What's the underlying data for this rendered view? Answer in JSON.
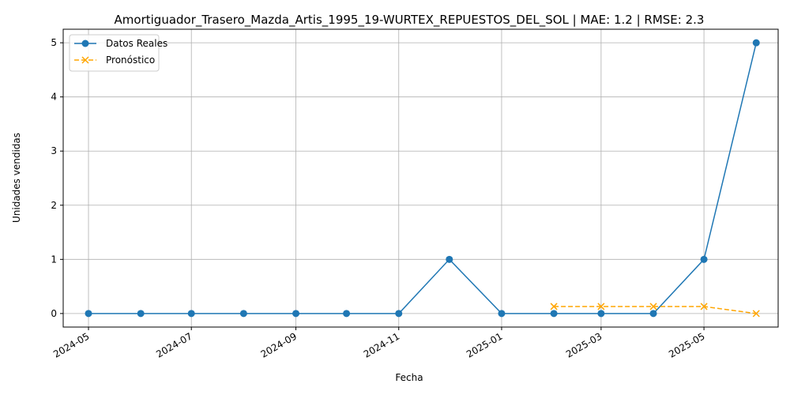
{
  "chart_data": {
    "type": "line",
    "title": "Amortiguador_Trasero_Mazda_Artis_1995_19-WURTEX_REPUESTOS_DEL_SOL | MAE: 1.2 | RMSE: 2.3",
    "xlabel": "Fecha",
    "ylabel": "Unidades vendidas",
    "ylim": [
      -0.25,
      5.25
    ],
    "xlim": [
      "2024-04-16",
      "2025-06-14"
    ],
    "grid": true,
    "legend_position": "upper-left",
    "x_ticks": [
      "2024-05",
      "2024-07",
      "2024-09",
      "2024-11",
      "2025-01",
      "2025-03",
      "2025-05"
    ],
    "y_ticks": [
      0,
      1,
      2,
      3,
      4,
      5
    ],
    "series": [
      {
        "name": "Datos Reales",
        "color": "#1f77b4",
        "style": "solid",
        "marker": "circle",
        "x": [
          "2024-05-01",
          "2024-06-01",
          "2024-07-01",
          "2024-08-01",
          "2024-09-01",
          "2024-10-01",
          "2024-11-01",
          "2024-12-01",
          "2025-01-01",
          "2025-02-01",
          "2025-03-01",
          "2025-04-01",
          "2025-05-01",
          "2025-06-01"
        ],
        "values": [
          0,
          0,
          0,
          0,
          0,
          0,
          0,
          1,
          0,
          0,
          0,
          0,
          1,
          5
        ]
      },
      {
        "name": "Pronóstico",
        "color": "#ffa500",
        "style": "dashed",
        "marker": "x",
        "x": [
          "2025-02-01",
          "2025-03-01",
          "2025-04-01",
          "2025-05-01",
          "2025-06-01"
        ],
        "values": [
          0.13,
          0.13,
          0.13,
          0.13,
          0
        ]
      }
    ]
  }
}
